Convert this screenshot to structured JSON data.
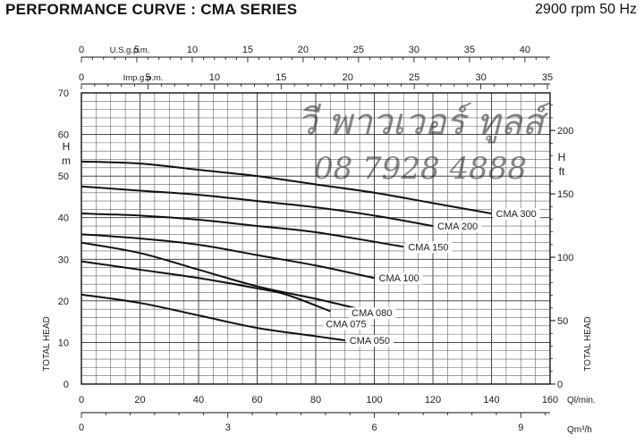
{
  "header": {
    "title": "PERFORMANCE CURVE : CMA SERIES",
    "speed": "2900 rpm 50 Hz"
  },
  "watermark": {
    "line1": "วี พาวเวอร์ ทูลส์",
    "line2": "08 7928 4888",
    "color": "#e8776b"
  },
  "chart_data": {
    "type": "line",
    "x_axis": {
      "label": "Ql/min.",
      "range": [
        0,
        160
      ],
      "ticks": [
        0,
        20,
        40,
        60,
        80,
        100,
        120,
        140,
        160
      ],
      "minor_step": 5
    },
    "x_axis_m3h": {
      "label": "Qm³/h",
      "range": [
        0,
        9.6
      ],
      "ticks": [
        0,
        3,
        6,
        9
      ]
    },
    "x_axis_usgpm": {
      "label": "U.S.g.p.m.",
      "range": [
        0,
        42.27
      ],
      "ticks": [
        0,
        5,
        10,
        15,
        20,
        25,
        30,
        35,
        40
      ]
    },
    "x_axis_impgpm": {
      "label": "Imp.g.p.m.",
      "range": [
        0,
        35.2
      ],
      "ticks": [
        0,
        5,
        10,
        15,
        20,
        25,
        30,
        35
      ]
    },
    "y_axis_m": {
      "label": "TOTAL HEAD",
      "unit_top": "H",
      "unit_bottom": "m",
      "range": [
        0,
        70
      ],
      "ticks": [
        0,
        10,
        20,
        30,
        40,
        50,
        60,
        70
      ],
      "minor_step": 2
    },
    "y_axis_ft": {
      "label": "TOTAL HEAD",
      "unit_top": "H",
      "unit_bottom": "ft",
      "range": [
        0,
        229.66
      ],
      "ticks": [
        0,
        50,
        100,
        150,
        200
      ]
    },
    "grid": true,
    "series": [
      {
        "name": "CMA 050",
        "x": [
          0,
          20,
          40,
          60,
          80,
          90
        ],
        "y": [
          21.5,
          19.5,
          16.5,
          13.5,
          11.5,
          10.5
        ]
      },
      {
        "name": "CMA 075",
        "x": [
          0,
          20,
          40,
          60,
          70,
          85
        ],
        "y": [
          29.5,
          27.5,
          25.5,
          23,
          21.5,
          17.5
        ]
      },
      {
        "name": "CMA 080",
        "x": [
          0,
          20,
          40,
          60,
          80,
          95
        ],
        "y": [
          34,
          31.5,
          27.5,
          23.5,
          20.5,
          18
        ]
      },
      {
        "name": "CMA 100",
        "x": [
          0,
          20,
          40,
          60,
          80,
          100
        ],
        "y": [
          36,
          35,
          33.5,
          31,
          28.5,
          25.5
        ]
      },
      {
        "name": "CMA 150",
        "x": [
          0,
          20,
          40,
          60,
          80,
          110
        ],
        "y": [
          41,
          40.5,
          39.5,
          38,
          36.5,
          33
        ]
      },
      {
        "name": "CMA 200",
        "x": [
          0,
          20,
          40,
          60,
          80,
          100,
          120
        ],
        "y": [
          47.5,
          46.5,
          45.5,
          44,
          42.5,
          40.5,
          38
        ]
      },
      {
        "name": "CMA 300",
        "x": [
          0,
          20,
          40,
          60,
          80,
          100,
          120,
          140
        ],
        "y": [
          53.5,
          53,
          51.5,
          50,
          48,
          46,
          43.5,
          41
        ]
      }
    ]
  }
}
